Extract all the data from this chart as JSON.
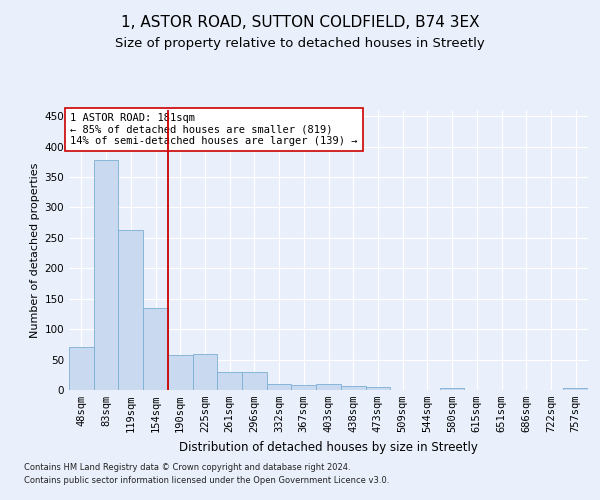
{
  "title": "1, ASTOR ROAD, SUTTON COLDFIELD, B74 3EX",
  "subtitle": "Size of property relative to detached houses in Streetly",
  "xlabel": "Distribution of detached houses by size in Streetly",
  "ylabel": "Number of detached properties",
  "footnote1": "Contains HM Land Registry data © Crown copyright and database right 2024.",
  "footnote2": "Contains public sector information licensed under the Open Government Licence v3.0.",
  "bar_labels": [
    "48sqm",
    "83sqm",
    "119sqm",
    "154sqm",
    "190sqm",
    "225sqm",
    "261sqm",
    "296sqm",
    "332sqm",
    "367sqm",
    "403sqm",
    "438sqm",
    "473sqm",
    "509sqm",
    "544sqm",
    "580sqm",
    "615sqm",
    "651sqm",
    "686sqm",
    "722sqm",
    "757sqm"
  ],
  "bar_values": [
    70,
    378,
    263,
    135,
    58,
    59,
    30,
    30,
    10,
    8,
    10,
    7,
    5,
    0,
    0,
    4,
    0,
    0,
    0,
    0,
    4
  ],
  "bar_color": "#c9d9f0",
  "bar_edge_color": "#7bafd4",
  "vline_x": 3.5,
  "vline_color": "#cc0000",
  "annotation_text": "1 ASTOR ROAD: 181sqm\n← 85% of detached houses are smaller (819)\n14% of semi-detached houses are larger (139) →",
  "annotation_box_color": "#ffffff",
  "annotation_box_edge": "#cc0000",
  "ylim": [
    0,
    460
  ],
  "yticks": [
    0,
    50,
    100,
    150,
    200,
    250,
    300,
    350,
    400,
    450
  ],
  "bg_color": "#eaf0fb",
  "plot_bg": "#eaf0fb",
  "title_fontsize": 11,
  "subtitle_fontsize": 9.5,
  "tick_fontsize": 7.5,
  "ylabel_fontsize": 8,
  "xlabel_fontsize": 8.5,
  "annot_fontsize": 7.5,
  "footnote_fontsize": 6.0
}
